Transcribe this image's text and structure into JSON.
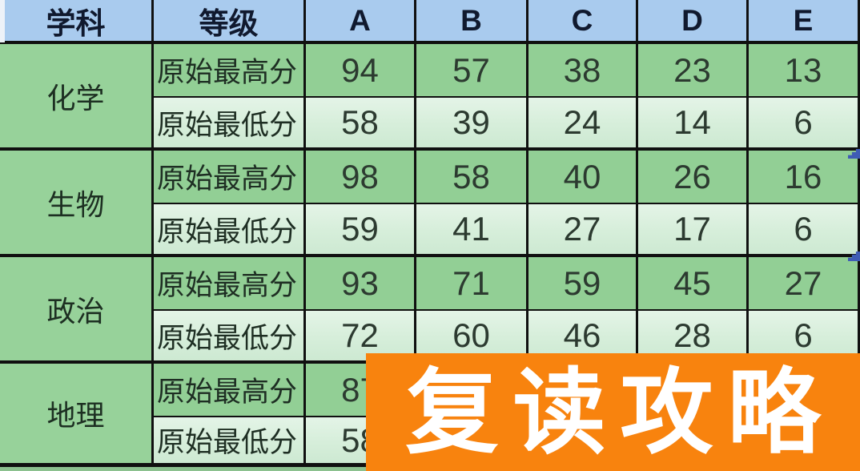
{
  "table": {
    "headers": {
      "subject": "学科",
      "grade": "等级",
      "levels": [
        "A",
        "B",
        "C",
        "D",
        "E"
      ]
    },
    "row_labels": {
      "high": "原始最高分",
      "low": "原始最低分"
    },
    "subjects": [
      {
        "name": "化学",
        "high": [
          "94",
          "57",
          "38",
          "23",
          "13"
        ],
        "low": [
          "58",
          "39",
          "24",
          "14",
          "6"
        ]
      },
      {
        "name": "生物",
        "high": [
          "98",
          "58",
          "40",
          "26",
          "16"
        ],
        "low": [
          "59",
          "41",
          "27",
          "17",
          "6"
        ]
      },
      {
        "name": "政治",
        "high": [
          "93",
          "71",
          "59",
          "45",
          "27"
        ],
        "low": [
          "72",
          "60",
          "46",
          "28",
          "6"
        ]
      },
      {
        "name": "地理",
        "high": [
          "87",
          "",
          "",
          "",
          ""
        ],
        "low": [
          "58",
          "",
          "",
          "",
          ""
        ]
      }
    ]
  },
  "banner": {
    "text": "复读攻略"
  },
  "colors": {
    "header_blue": "#a9cbee",
    "cell_green_dark": "#92cf95",
    "cell_green_light": "#d8eedb",
    "subject_green": "#97d29a",
    "border_black": "#101010",
    "banner_orange": "#f8830e",
    "banner_text_white": "#ffffff",
    "watermark_blue": "#3f5cb5"
  }
}
